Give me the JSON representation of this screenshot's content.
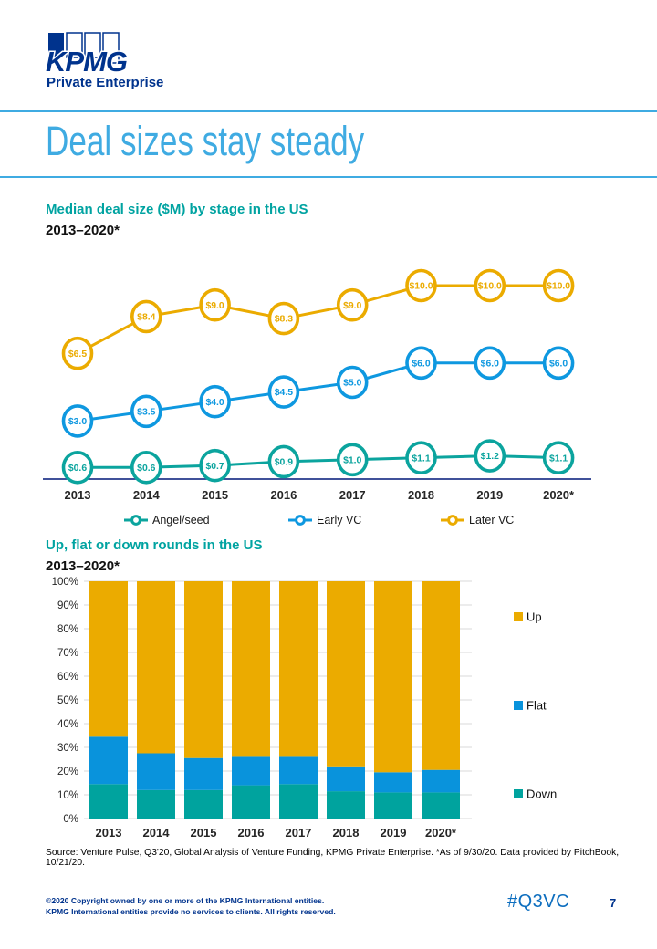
{
  "brand": {
    "logo": "KPMG",
    "sub": "Private Enterprise"
  },
  "page": {
    "title": "Deal sizes stay steady",
    "hashtag": "#Q3VC",
    "page_number": "7",
    "source": "Source: Venture Pulse, Q3'20, Global Analysis of Venture Funding, KPMG Private Enterprise. *As of 9/30/20. Data provided by PitchBook, 10/21/20.",
    "copyright1": "©2020 Copyright owned by one or more of the KPMG International entities.",
    "copyright2": "KPMG International entities provide no services to clients. All rights reserved."
  },
  "colors": {
    "brand_blue": "#00338D",
    "light_blue": "#3FABE2",
    "teal": "#00A3A1",
    "hashtag_blue": "#0D6EBF",
    "axis_navy": "#24388C",
    "gridline": "#D9D9D9",
    "tick_label": "#262626"
  },
  "chart_data": [
    {
      "type": "line",
      "title": "Median deal size ($M) by stage in the US",
      "subtitle": "2013–2020*",
      "categories": [
        "2013",
        "2014",
        "2015",
        "2016",
        "2017",
        "2018",
        "2019",
        "2020*"
      ],
      "series": [
        {
          "name": "Angel/seed",
          "color": "#0BA49E",
          "values": [
            0.6,
            0.6,
            0.7,
            0.9,
            1.0,
            1.1,
            1.2,
            1.1
          ]
        },
        {
          "name": "Early VC",
          "color": "#0E98E0",
          "values": [
            3.0,
            3.5,
            4.0,
            4.5,
            5.0,
            6.0,
            6.0,
            6.0
          ]
        },
        {
          "name": "Later VC",
          "color": "#EBAB00",
          "values": [
            6.5,
            8.4,
            9.0,
            8.3,
            9.0,
            10.0,
            10.0,
            10.0
          ]
        }
      ],
      "value_prefix": "$",
      "value_decimals": 1,
      "ylim": [
        0,
        12
      ],
      "grid": false,
      "legend_position": "bottom"
    },
    {
      "type": "bar",
      "stacked": true,
      "title": "Up, flat or down rounds in the US",
      "subtitle": "2013–2020*",
      "categories": [
        "2013",
        "2014",
        "2015",
        "2016",
        "2017",
        "2018",
        "2019",
        "2020*"
      ],
      "series": [
        {
          "name": "Down",
          "color": "#00A39E",
          "values": [
            14.5,
            12.0,
            12.0,
            14.0,
            14.5,
            11.5,
            11.0,
            11.0
          ]
        },
        {
          "name": "Flat",
          "color": "#0993DC",
          "values": [
            20.0,
            15.5,
            13.5,
            12.0,
            11.5,
            10.5,
            8.5,
            9.5
          ]
        },
        {
          "name": "Up",
          "color": "#EBAB00",
          "values": [
            65.5,
            72.5,
            74.5,
            74.0,
            74.0,
            78.0,
            80.5,
            79.5
          ]
        }
      ],
      "ylim": [
        0,
        100
      ],
      "ytick_step": 10,
      "ytick_suffix": "%",
      "grid": true,
      "legend_position": "right",
      "legend_order": [
        "Up",
        "Flat",
        "Down"
      ]
    }
  ]
}
